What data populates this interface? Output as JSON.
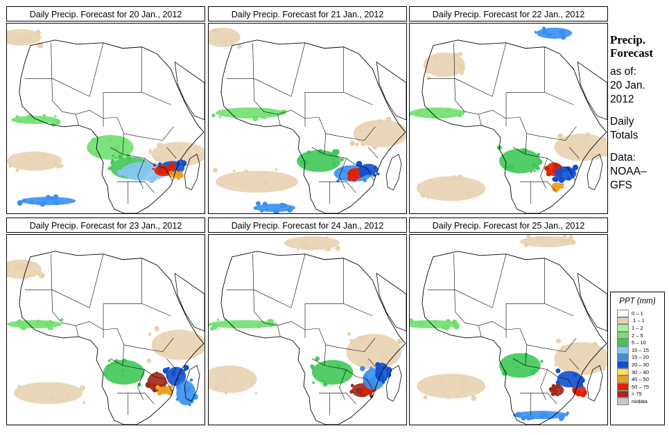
{
  "panels": [
    {
      "title": "Daily Precip. Forecast for  20 Jan., 2012"
    },
    {
      "title": "Daily Precip. Forecast for  21 Jan., 2012"
    },
    {
      "title": "Daily Precip. Forecast for  22 Jan., 2012"
    },
    {
      "title": "Daily Precip. Forecast for  23 Jan., 2012"
    },
    {
      "title": "Daily Precip. Forecast for  24 Jan., 2012"
    },
    {
      "title": "Daily Precip. Forecast for  25 Jan., 2012"
    }
  ],
  "info": {
    "title1": "Precip.",
    "title2": "Forecast",
    "asof": "as of:",
    "date1": "20 Jan.",
    "date2": "2012",
    "daily": "Daily",
    "totals": "Totals",
    "data": "Data:",
    "source1": "NOAA–",
    "source2": "GFS"
  },
  "legend": {
    "title": "PPT (mm)",
    "items": [
      {
        "label": "0 – 1",
        "color": "#ffffff"
      },
      {
        "label": ".1 – 1",
        "color": "#e8d2b0"
      },
      {
        "label": "1 – 2",
        "color": "#a8f0a0"
      },
      {
        "label": "2 – 5",
        "color": "#70e070"
      },
      {
        "label": "5 – 10",
        "color": "#40c858"
      },
      {
        "label": "10 – 15",
        "color": "#88c8f8"
      },
      {
        "label": "15 – 20",
        "color": "#3890f0"
      },
      {
        "label": "20 – 30",
        "color": "#1050d0"
      },
      {
        "label": "30 – 40",
        "color": "#f8e060"
      },
      {
        "label": "40 – 50",
        "color": "#f0a020"
      },
      {
        "label": "50 – 75",
        "color": "#e02000"
      },
      {
        "label": "> 75",
        "color": "#a02818"
      },
      {
        "label": "nodata",
        "color": "#c8c8c8"
      }
    ]
  }
}
